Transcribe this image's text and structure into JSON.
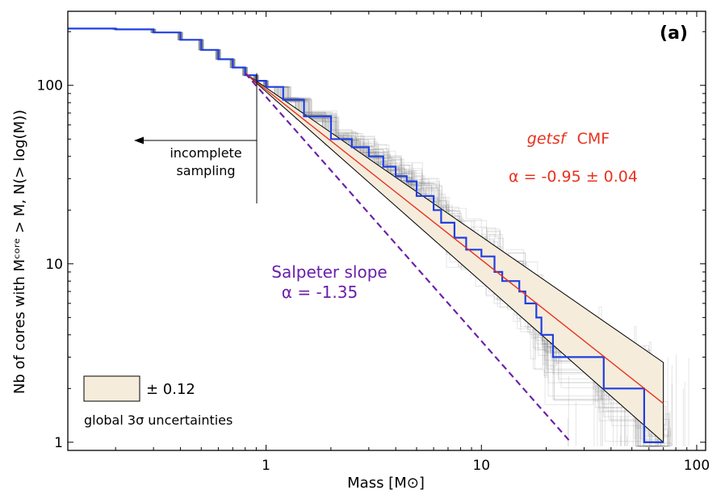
{
  "chart_data": {
    "type": "line",
    "panel_label": "(a)",
    "xlabel": "Mass [M⊙]",
    "ylabel": "Nb of cores with Mᶜᵒʳᵉ > M, N(> log(M))",
    "xscale": "log",
    "yscale": "log",
    "xlim": [
      0.12,
      110
    ],
    "ylim": [
      0.9,
      260
    ],
    "x_ticks": [
      {
        "value": 1,
        "label": "1"
      },
      {
        "value": 10,
        "label": "10"
      },
      {
        "value": 100,
        "label": "100"
      }
    ],
    "y_ticks": [
      {
        "value": 1,
        "label": "1"
      },
      {
        "value": 10,
        "label": "10"
      },
      {
        "value": 100,
        "label": "100"
      }
    ],
    "grid": false,
    "series": [
      {
        "key": "observed",
        "color": "#1f3fe0",
        "style": "step",
        "points": [
          [
            0.12,
            208
          ],
          [
            0.2,
            206
          ],
          [
            0.3,
            198
          ],
          [
            0.4,
            180
          ],
          [
            0.5,
            158
          ],
          [
            0.6,
            140
          ],
          [
            0.7,
            126
          ],
          [
            0.8,
            114
          ],
          [
            0.9,
            106
          ],
          [
            1.0,
            98
          ],
          [
            1.2,
            83
          ],
          [
            1.5,
            67
          ],
          [
            2.0,
            50
          ],
          [
            2.5,
            45
          ],
          [
            3.0,
            40
          ],
          [
            3.5,
            35
          ],
          [
            4.0,
            31
          ],
          [
            4.5,
            29
          ],
          [
            5.0,
            24
          ],
          [
            6.0,
            20
          ],
          [
            6.5,
            17
          ],
          [
            7.5,
            14
          ],
          [
            8.5,
            12
          ],
          [
            10.0,
            11
          ],
          [
            11.5,
            9
          ],
          [
            12.5,
            8
          ],
          [
            15.0,
            7
          ],
          [
            16.0,
            6
          ],
          [
            18.0,
            5
          ],
          [
            19.0,
            4
          ],
          [
            21.0,
            4
          ],
          [
            21.5,
            3
          ],
          [
            36.0,
            3
          ],
          [
            37.0,
            2
          ],
          [
            56.0,
            2
          ],
          [
            57.0,
            1
          ],
          [
            70.0,
            1
          ]
        ]
      },
      {
        "key": "fit",
        "color": "#e8321e",
        "style": "line",
        "points": [
          [
            0.8,
            117
          ],
          [
            70,
            1.65
          ]
        ]
      },
      {
        "key": "salpeter",
        "color": "#6a1fa8",
        "style": "dashed",
        "points": [
          [
            0.8,
            117
          ],
          [
            26,
            1.0
          ]
        ]
      }
    ],
    "uncertainty_band": {
      "fill": "#f5ecdc",
      "upper": [
        [
          0.8,
          117
        ],
        [
          70,
          2.8
        ]
      ],
      "lower": [
        [
          0.8,
          117
        ],
        [
          70,
          1.0
        ]
      ]
    },
    "annotations": {
      "cmf_name": "getsf",
      "cmf_suffix": "CMF",
      "fit_alpha": "α = -0.95 ± 0.04",
      "salpeter_label": "Salpeter slope",
      "salpeter_alpha": "α = -1.35",
      "incomplete_line1": "incomplete",
      "incomplete_line2": "sampling",
      "legend_text": "± 0.12",
      "legend_caption": "global 3σ uncertainties"
    }
  }
}
